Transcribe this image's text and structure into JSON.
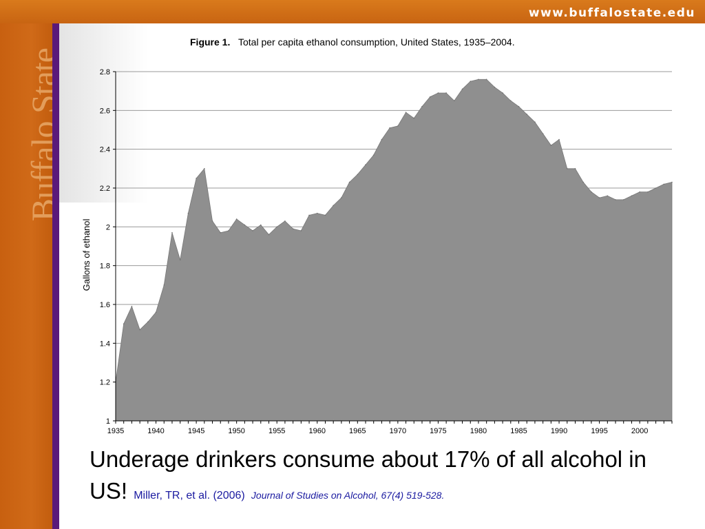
{
  "header": {
    "url": "www.buffalostate.edu"
  },
  "sidebar": {
    "brand": "Buffalo State"
  },
  "caption": {
    "text": "Underage drinkers consume about 17% of all alcohol in US!",
    "citation": "Miller, TR, et al. (2006)",
    "journal": "Journal of Studies on Alcohol, 67(4) 519-528."
  },
  "colors": {
    "area_fill": "#8f8f8f",
    "frame_orange": "#cc6600",
    "rule_purple": "#5a1a7a",
    "citation_blue": "#1a1aa0"
  },
  "chart_data": {
    "type": "area",
    "title_prefix": "Figure 1.",
    "title": "Total per capita ethanol consumption, United States, 1935–2004.",
    "xlabel": "",
    "ylabel": "Gallons of ethanol",
    "xlim": [
      1935,
      2004
    ],
    "ylim": [
      1,
      2.8
    ],
    "grid": true,
    "x_ticks": [
      "1935",
      "1940",
      "1945",
      "1950",
      "1955",
      "1960",
      "1965",
      "1970",
      "1975",
      "1980",
      "1985",
      "1990",
      "1995",
      "2000"
    ],
    "y_ticks": [
      "1",
      "1.2",
      "1.4",
      "1.6",
      "1.8",
      "2",
      "2.2",
      "2.4",
      "2.6",
      "2.8"
    ],
    "x": [
      1935,
      1936,
      1937,
      1938,
      1939,
      1940,
      1941,
      1942,
      1943,
      1944,
      1945,
      1946,
      1947,
      1948,
      1949,
      1950,
      1951,
      1952,
      1953,
      1954,
      1955,
      1956,
      1957,
      1958,
      1959,
      1960,
      1961,
      1962,
      1963,
      1964,
      1965,
      1966,
      1967,
      1968,
      1969,
      1970,
      1971,
      1972,
      1973,
      1974,
      1975,
      1976,
      1977,
      1978,
      1979,
      1980,
      1981,
      1982,
      1983,
      1984,
      1985,
      1986,
      1987,
      1988,
      1989,
      1990,
      1991,
      1992,
      1993,
      1994,
      1995,
      1996,
      1997,
      1998,
      1999,
      2000,
      2001,
      2002,
      2003,
      2004
    ],
    "values": [
      1.2,
      1.5,
      1.59,
      1.47,
      1.51,
      1.56,
      1.7,
      1.97,
      1.83,
      2.07,
      2.25,
      2.3,
      2.03,
      1.97,
      1.98,
      2.04,
      2.01,
      1.98,
      2.01,
      1.96,
      2.0,
      2.03,
      1.99,
      1.98,
      2.06,
      2.07,
      2.06,
      2.11,
      2.15,
      2.23,
      2.27,
      2.32,
      2.37,
      2.45,
      2.51,
      2.52,
      2.59,
      2.56,
      2.62,
      2.67,
      2.69,
      2.69,
      2.65,
      2.71,
      2.75,
      2.76,
      2.76,
      2.72,
      2.69,
      2.65,
      2.62,
      2.58,
      2.54,
      2.48,
      2.42,
      2.45,
      2.3,
      2.3,
      2.23,
      2.18,
      2.15,
      2.16,
      2.14,
      2.14,
      2.16,
      2.18,
      2.18,
      2.2,
      2.22,
      2.23
    ]
  }
}
